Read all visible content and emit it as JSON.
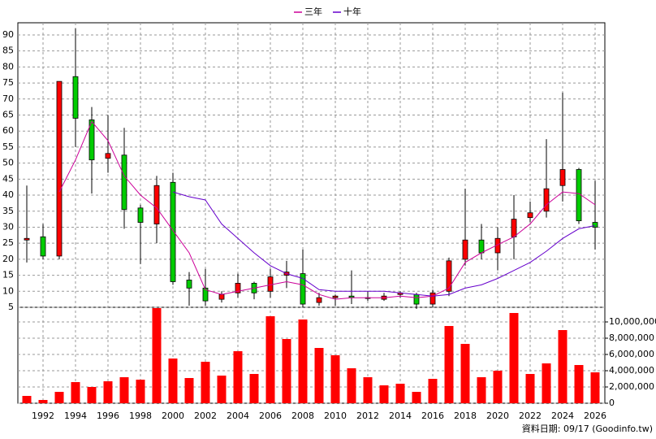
{
  "chart_data": {
    "type": "candlestick",
    "x": [
      1991,
      1992,
      1993,
      1994,
      1995,
      1996,
      1997,
      1998,
      1999,
      2000,
      2001,
      2002,
      2003,
      2004,
      2005,
      2006,
      2007,
      2008,
      2009,
      2010,
      2011,
      2012,
      2013,
      2014,
      2015,
      2016,
      2017,
      2018,
      2019,
      2020,
      2021,
      2022,
      2023,
      2024,
      2025,
      2026
    ],
    "open": [
      26,
      27,
      21,
      77,
      63.5,
      51.5,
      52.5,
      36,
      31,
      44,
      13.5,
      11,
      7.5,
      9.5,
      12.5,
      10,
      15,
      15.5,
      6.5,
      8,
      8.5,
      8,
      7.5,
      9,
      9,
      6,
      10,
      20,
      26,
      22,
      27,
      33,
      35,
      43,
      48,
      31.5
    ],
    "high": [
      43,
      31,
      75.5,
      92,
      67.5,
      65,
      61,
      37,
      46,
      47,
      16,
      17,
      10,
      15.5,
      13,
      17,
      19.5,
      23,
      9.5,
      9,
      16.5,
      10,
      9.5,
      10,
      9.5,
      10.5,
      20.5,
      42,
      31,
      30,
      40,
      38,
      57.5,
      72,
      48.5,
      44.5
    ],
    "low": [
      19,
      20,
      20,
      55,
      40.5,
      47,
      29.5,
      18.5,
      25,
      12,
      5.5,
      5.5,
      6.5,
      8,
      7.5,
      8,
      11,
      5,
      5.5,
      5.5,
      6,
      7,
      7,
      8,
      4.5,
      5,
      8.5,
      18,
      20,
      16.5,
      20,
      31.5,
      33,
      38,
      31,
      23
    ],
    "close": [
      26.5,
      21,
      75.5,
      64,
      51,
      53,
      35.5,
      31.5,
      43,
      13,
      11,
      7,
      9,
      12.5,
      9.5,
      14.5,
      16,
      6,
      8,
      8.5,
      8,
      8,
      8.5,
      9.5,
      6,
      9.5,
      19.5,
      26,
      22,
      26.5,
      32.5,
      34.5,
      42,
      48,
      32,
      30
    ],
    "up_color": "#ff0000",
    "down_color": "#00cc00",
    "lines": [
      {
        "name": "三年",
        "color": "#cc0099",
        "values": [
          null,
          null,
          41,
          51,
          63,
          57,
          46,
          40,
          36,
          29,
          22,
          10.5,
          9,
          10,
          11,
          12,
          13,
          12,
          9,
          7.5,
          8,
          8,
          8,
          8.5,
          8,
          8.5,
          11,
          19,
          22,
          24.5,
          27,
          31,
          37,
          41,
          40.5,
          37
        ]
      },
      {
        "name": "十年",
        "color": "#6600cc",
        "values": [
          null,
          null,
          null,
          null,
          null,
          null,
          null,
          null,
          null,
          41,
          39.5,
          38.5,
          31,
          26.5,
          22,
          18,
          15.5,
          14,
          10.5,
          10,
          10,
          10,
          10,
          9.5,
          9,
          8.5,
          9,
          11,
          12,
          14,
          16.5,
          19,
          22.5,
          26.5,
          29.5,
          30.5
        ]
      }
    ],
    "volume": {
      "color": "#ff0000",
      "values": [
        900000,
        400000,
        1400000,
        2600000,
        2000000,
        2700000,
        3200000,
        2900000,
        11700000,
        5500000,
        3100000,
        5100000,
        3400000,
        6400000,
        3600000,
        10700000,
        7900000,
        10300000,
        6800000,
        5900000,
        4300000,
        3200000,
        2200000,
        2400000,
        1400000,
        3000000,
        9500000,
        7300000,
        3200000,
        4000000,
        11100000,
        3600000,
        4900000,
        9000000,
        4700000,
        3800000
      ]
    },
    "xlim": [
      1990.45,
      2026.6
    ],
    "xticks": [
      1992,
      1994,
      1996,
      1998,
      2000,
      2002,
      2004,
      2006,
      2008,
      2010,
      2012,
      2014,
      2016,
      2018,
      2020,
      2022,
      2024,
      2026
    ],
    "ylim": [
      5,
      93.8
    ],
    "yticks": [
      5,
      10,
      15,
      20,
      25,
      30,
      35,
      40,
      45,
      50,
      55,
      60,
      65,
      70,
      75,
      80,
      85,
      90
    ],
    "y2lim": [
      0,
      11800000
    ],
    "y2ticks": [
      0,
      {
        "value": 2000000,
        "label": "2,000,000"
      },
      {
        "value": 4000000,
        "label": "4,000,000"
      },
      {
        "value": 6000000,
        "label": "6,000,000"
      },
      {
        "value": 8000000,
        "label": "8,000,000"
      },
      {
        "value": 10000000,
        "label": "10,000,000"
      }
    ],
    "grid": true,
    "footnote": "資料日期: 09/17 (Goodinfo.tw)"
  }
}
